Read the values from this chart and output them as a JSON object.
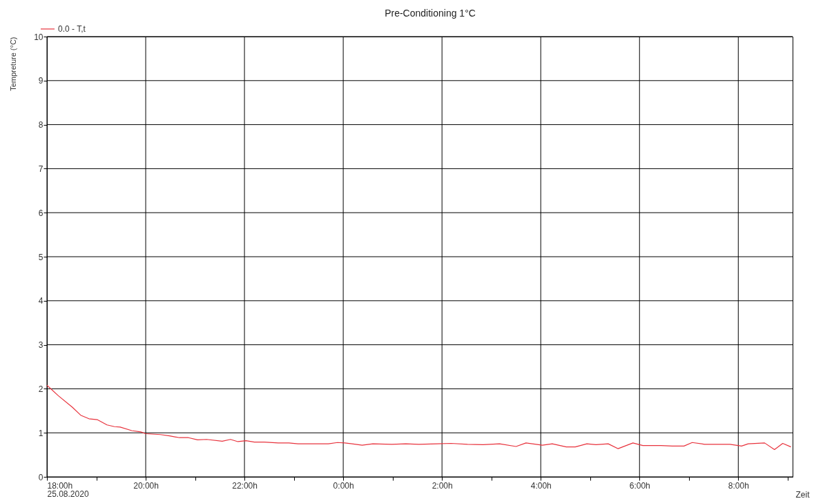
{
  "chart_data": {
    "type": "line",
    "title": "Pre-Conditioning 1°C",
    "xlabel": "Zeit",
    "ylabel": "Tempreture (°C)",
    "x": [
      "2020-08-25T18:00",
      "2020-08-25T18:14",
      "2020-08-25T18:31",
      "2020-08-25T18:41",
      "2020-08-25T18:51",
      "2020-08-25T19:01",
      "2020-08-25T19:13",
      "2020-08-25T19:22",
      "2020-08-25T19:29",
      "2020-08-25T19:43",
      "2020-08-25T19:54",
      "2020-08-25T20:00",
      "2020-08-25T20:18",
      "2020-08-25T20:29",
      "2020-08-25T20:41",
      "2020-08-25T20:52",
      "2020-08-25T21:03",
      "2020-08-25T21:14",
      "2020-08-25T21:33",
      "2020-08-25T21:43",
      "2020-08-25T21:52",
      "2020-08-25T22:02",
      "2020-08-25T22:12",
      "2020-08-25T22:24",
      "2020-08-25T22:41",
      "2020-08-25T22:54",
      "2020-08-25T23:05",
      "2020-08-25T23:42",
      "2020-08-25T23:53",
      "2020-08-26T00:02",
      "2020-08-26T00:23",
      "2020-08-26T00:36",
      "2020-08-26T00:59",
      "2020-08-26T01:16",
      "2020-08-26T01:32",
      "2020-08-26T01:54",
      "2020-08-26T02:11",
      "2020-08-26T02:31",
      "2020-08-26T02:50",
      "2020-08-26T03:10",
      "2020-08-26T03:30",
      "2020-08-26T03:42",
      "2020-08-26T04:02",
      "2020-08-26T04:14",
      "2020-08-26T04:31",
      "2020-08-26T04:42",
      "2020-08-26T04:56",
      "2020-08-26T05:07",
      "2020-08-26T05:22",
      "2020-08-26T05:34",
      "2020-08-26T05:52",
      "2020-08-26T06:04",
      "2020-08-26T06:26",
      "2020-08-26T06:40",
      "2020-08-26T06:54",
      "2020-08-26T07:04",
      "2020-08-26T07:19",
      "2020-08-26T07:50",
      "2020-08-26T08:04",
      "2020-08-26T08:12",
      "2020-08-26T08:32",
      "2020-08-26T08:44",
      "2020-08-26T08:54",
      "2020-08-26T09:04"
    ],
    "series": [
      {
        "name": "0.0 - T,t",
        "color": "#e8323c",
        "values": [
          2.08,
          1.84,
          1.58,
          1.4,
          1.32,
          1.3,
          1.18,
          1.14,
          1.13,
          1.05,
          1.02,
          0.98,
          0.96,
          0.93,
          0.89,
          0.89,
          0.84,
          0.85,
          0.81,
          0.85,
          0.8,
          0.82,
          0.79,
          0.79,
          0.77,
          0.77,
          0.75,
          0.75,
          0.78,
          0.77,
          0.72,
          0.75,
          0.74,
          0.75,
          0.74,
          0.75,
          0.76,
          0.74,
          0.73,
          0.75,
          0.69,
          0.77,
          0.72,
          0.75,
          0.68,
          0.68,
          0.75,
          0.73,
          0.75,
          0.64,
          0.77,
          0.71,
          0.71,
          0.7,
          0.7,
          0.78,
          0.74,
          0.74,
          0.7,
          0.75,
          0.77,
          0.62,
          0.76,
          0.68
        ]
      }
    ],
    "xlim": [
      "2020-08-25T18:00",
      "2020-08-26T09:06"
    ],
    "xticks": [
      {
        "value": "2020-08-25T18:00",
        "label": "18:00h\n25.08.2020"
      },
      {
        "value": "2020-08-25T19:00",
        "label": null
      },
      {
        "value": "2020-08-25T20:00",
        "label": "20:00h"
      },
      {
        "value": "2020-08-25T21:00",
        "label": null
      },
      {
        "value": "2020-08-25T22:00",
        "label": "22:00h"
      },
      {
        "value": "2020-08-25T23:00",
        "label": null
      },
      {
        "value": "2020-08-26T00:00",
        "label": "0:00h"
      },
      {
        "value": "2020-08-26T01:00",
        "label": null
      },
      {
        "value": "2020-08-26T02:00",
        "label": "2:00h"
      },
      {
        "value": "2020-08-26T03:00",
        "label": null
      },
      {
        "value": "2020-08-26T04:00",
        "label": "4:00h"
      },
      {
        "value": "2020-08-26T05:00",
        "label": null
      },
      {
        "value": "2020-08-26T06:00",
        "label": "6:00h"
      },
      {
        "value": "2020-08-26T07:00",
        "label": null
      },
      {
        "value": "2020-08-26T08:00",
        "label": "8:00h"
      },
      {
        "value": "2020-08-26T09:00",
        "label": null
      }
    ],
    "ylim": [
      0,
      10
    ],
    "yticks": [
      0,
      1,
      2,
      3,
      4,
      5,
      6,
      7,
      8,
      9,
      10
    ],
    "grid": true,
    "legend": "top left",
    "marker": "none",
    "line_style": "solid"
  }
}
